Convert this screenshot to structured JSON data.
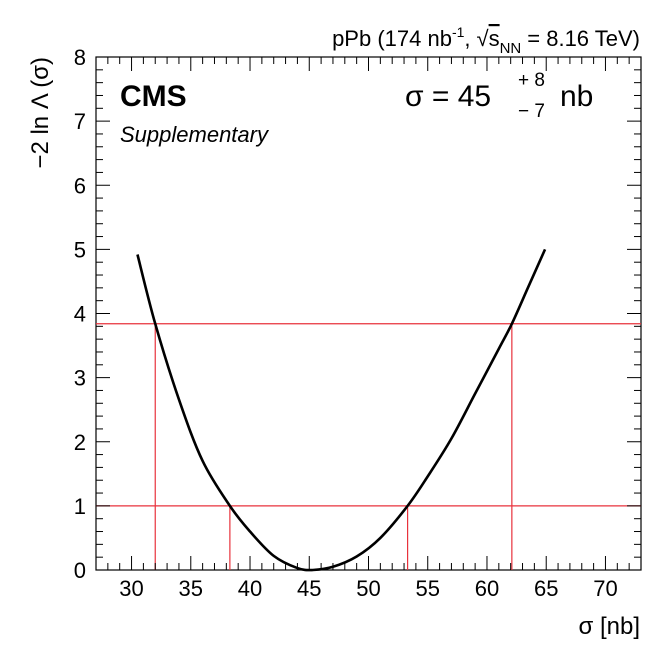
{
  "header": {
    "lumi_prefix": "pPb (174 nb",
    "lumi_exp": "-1",
    "lumi_sep": ",",
    "energy_sym": "s",
    "energy_sub": "NN",
    "energy_value": "= 8.16 TeV)"
  },
  "labels": {
    "experiment": "CMS",
    "qualifier": "Supplementary",
    "result_main": "σ = 45",
    "result_plus": "+ 8",
    "result_minus": "− 7",
    "result_unit": "nb"
  },
  "chart_data": {
    "type": "line",
    "xlabel": "σ [nb]",
    "ylabel": "−2 ln Λ (σ)",
    "xlim": [
      27,
      73
    ],
    "ylim": [
      0,
      8
    ],
    "xticks": [
      30,
      35,
      40,
      45,
      50,
      55,
      60,
      65,
      70
    ],
    "yticks": [
      0,
      1,
      2,
      3,
      4,
      5,
      6,
      7,
      8
    ],
    "grid": false,
    "curve_color": "#000000",
    "reference_color": "#e8323c",
    "series": [
      {
        "x": [
          30.5,
          32.0,
          34.0,
          36.0,
          38.3,
          40.0,
          42.0,
          44.0,
          45.3,
          47.0,
          49.0,
          51.0,
          53.3,
          55.0,
          57.0,
          59.0,
          61.0,
          62.1,
          63.5,
          64.9
        ],
        "y": [
          4.92,
          3.84,
          2.66,
          1.7,
          1.0,
          0.6,
          0.22,
          0.03,
          0.0,
          0.05,
          0.21,
          0.5,
          1.0,
          1.46,
          2.05,
          2.75,
          3.45,
          3.84,
          4.42,
          5.0
        ]
      }
    ],
    "reference_lines": [
      {
        "level": 1.0,
        "x_low": 38.3,
        "x_high": 53.3
      },
      {
        "level": 3.84,
        "x_low": 32.0,
        "x_high": 62.1
      }
    ]
  }
}
